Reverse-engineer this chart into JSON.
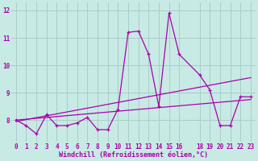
{
  "xlabel": "Windchill (Refroidissement éolien,°C)",
  "background_color": "#c8eae4",
  "line_color": "#aa00aa",
  "grid_color": "#aacccc",
  "x_data": [
    0,
    1,
    2,
    3,
    4,
    5,
    6,
    7,
    8,
    9,
    10,
    11,
    12,
    13,
    14,
    15,
    16,
    18,
    19,
    20,
    21,
    22,
    23
  ],
  "y_data": [
    8.0,
    7.8,
    7.5,
    8.2,
    7.8,
    7.8,
    7.9,
    8.1,
    7.65,
    7.65,
    8.4,
    11.2,
    11.25,
    10.4,
    8.5,
    11.9,
    10.4,
    9.65,
    9.1,
    7.8,
    7.8,
    8.85,
    8.85
  ],
  "trend_line1_x": [
    0,
    23
  ],
  "trend_line1_y": [
    8.0,
    8.75
  ],
  "trend_line2_x": [
    0,
    23
  ],
  "trend_line2_y": [
    7.95,
    9.55
  ],
  "xlim": [
    -0.5,
    23.5
  ],
  "ylim": [
    7.2,
    12.3
  ],
  "yticks": [
    8,
    9,
    10,
    11,
    12
  ],
  "xticks": [
    0,
    1,
    2,
    3,
    4,
    5,
    6,
    7,
    8,
    9,
    10,
    11,
    12,
    13,
    14,
    15,
    16,
    18,
    19,
    20,
    21,
    22,
    23
  ],
  "xlabel_fontsize": 6,
  "tick_fontsize": 5.5
}
